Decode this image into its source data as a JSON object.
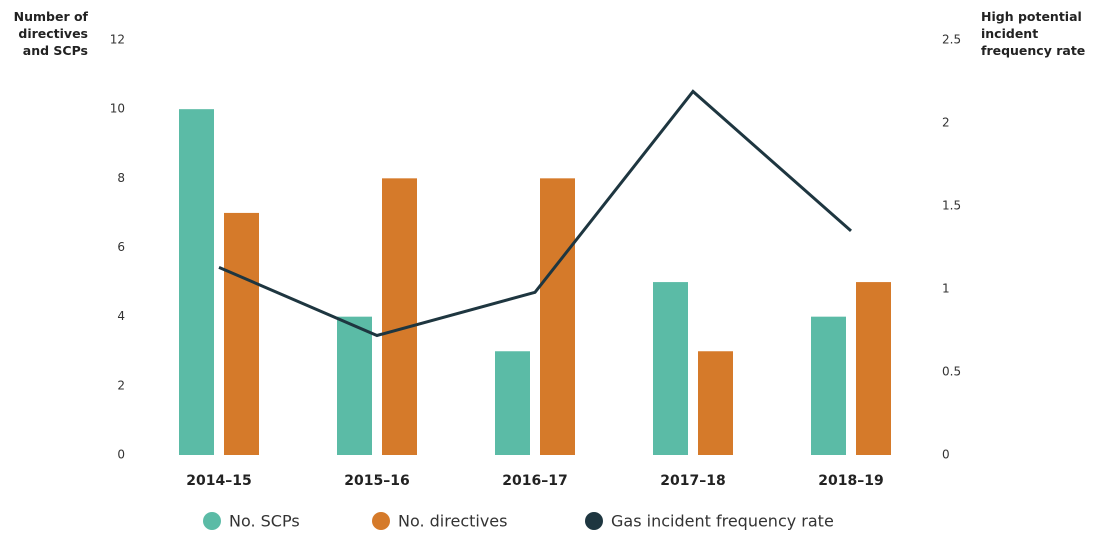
{
  "chart_data": {
    "type": "bar",
    "categories": [
      "2014–15",
      "2015–16",
      "2016–17",
      "2017–18",
      "2018–19"
    ],
    "y_label": "Number of directives and SCPs",
    "y2_label": "High potential incident frequency rate",
    "ylim": [
      0,
      12
    ],
    "yticks": [
      0,
      2,
      4,
      6,
      8,
      10,
      12
    ],
    "y2lim": [
      0,
      2.5
    ],
    "y2ticks": [
      0,
      0.5,
      1,
      1.5,
      2,
      2.5
    ],
    "legend": "bottom",
    "series": [
      {
        "name": "No. SCPs",
        "type": "bar",
        "color": "#5bbba6",
        "values": [
          10,
          4,
          3,
          5,
          4
        ]
      },
      {
        "name": "No. directives",
        "type": "bar",
        "color": "#d57a2a",
        "values": [
          7,
          8,
          8,
          3,
          5
        ]
      },
      {
        "name": "Gas incident frequency rate",
        "type": "line",
        "axis": "y2",
        "color": "#1e3640",
        "values": [
          1.13,
          0.72,
          0.98,
          2.19,
          1.35
        ]
      }
    ]
  }
}
